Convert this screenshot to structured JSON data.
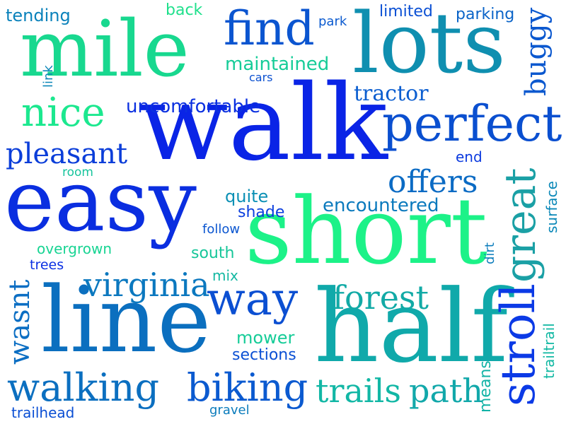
{
  "words": [
    {
      "text": "walk",
      "color": "#0a24e6"
    },
    {
      "text": "short",
      "color": "#1cf288"
    },
    {
      "text": "easy",
      "color": "#0a2ee0"
    },
    {
      "text": "line",
      "color": "#0b6fbf"
    },
    {
      "text": "half",
      "color": "#10a9aa"
    },
    {
      "text": "lots",
      "color": "#0f8fb0"
    },
    {
      "text": "mile",
      "color": "#18d88f"
    },
    {
      "text": "perfect",
      "color": "#0a4fd0"
    },
    {
      "text": "stroll",
      "color": "#0b3ae6"
    },
    {
      "text": "great",
      "color": "#1aa0a5"
    },
    {
      "text": "find",
      "color": "#0b55d0"
    },
    {
      "text": "way",
      "color": "#0b4fd2"
    },
    {
      "text": "nice",
      "color": "#1ce88f"
    },
    {
      "text": "walking",
      "color": "#0b6fc0"
    },
    {
      "text": "biking",
      "color": "#0b5ad0"
    },
    {
      "text": "trails",
      "color": "#12b7a5"
    },
    {
      "text": "path",
      "color": "#12a8aa"
    },
    {
      "text": "virginia",
      "color": "#0b78bf"
    },
    {
      "text": "forest",
      "color": "#12aaa6"
    },
    {
      "text": "pleasant",
      "color": "#0b3ed9"
    },
    {
      "text": "offers",
      "color": "#0b6bc4"
    },
    {
      "text": "buggy",
      "color": "#0b58cf"
    },
    {
      "text": "wasnt",
      "color": "#0b6ec3"
    },
    {
      "text": "tractor",
      "color": "#0b5ed0"
    },
    {
      "text": "uncomfortable",
      "color": "#0b30e0"
    },
    {
      "text": "encountered",
      "color": "#0b7abd"
    },
    {
      "text": "maintained",
      "color": "#16cc98"
    },
    {
      "text": "limited",
      "color": "#0b50d4"
    },
    {
      "text": "parking",
      "color": "#0b64c8"
    },
    {
      "text": "tending",
      "color": "#0b82bb"
    },
    {
      "text": "back",
      "color": "#1fe08c"
    },
    {
      "text": "park",
      "color": "#0b5acf"
    },
    {
      "text": "link",
      "color": "#0b86b8"
    },
    {
      "text": "cars",
      "color": "#0b50d0"
    },
    {
      "text": "room",
      "color": "#16c49c"
    },
    {
      "text": "end",
      "color": "#0b3adf"
    },
    {
      "text": "quite",
      "color": "#0b90b5"
    },
    {
      "text": "shade",
      "color": "#0b3ede"
    },
    {
      "text": "follow",
      "color": "#0b56d0"
    },
    {
      "text": "overgrown",
      "color": "#18d493"
    },
    {
      "text": "trees",
      "color": "#0b30e3"
    },
    {
      "text": "south",
      "color": "#16c699"
    },
    {
      "text": "mix",
      "color": "#14b8a2"
    },
    {
      "text": "mower",
      "color": "#16cc98"
    },
    {
      "text": "sections",
      "color": "#0b50d4"
    },
    {
      "text": "trailhead",
      "color": "#0b4fd4"
    },
    {
      "text": "gravel",
      "color": "#0b7cbc"
    },
    {
      "text": "means",
      "color": "#12b3a6"
    },
    {
      "text": "surface",
      "color": "#0b88b8"
    },
    {
      "text": "dirt",
      "color": "#0b7cbc"
    },
    {
      "text": "trailtrail",
      "color": "#12b8a3"
    }
  ]
}
